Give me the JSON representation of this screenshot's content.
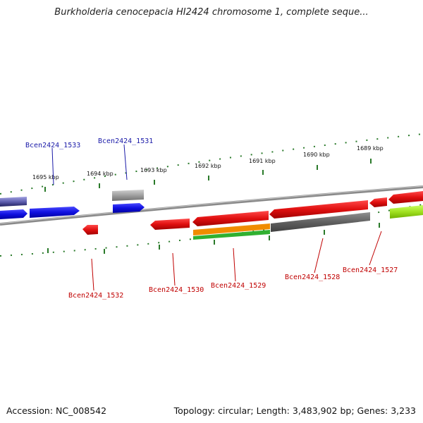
{
  "title": "Burkholderia cenocepacia HI2424 chromosome 1, complete seque...",
  "footer": {
    "accession": "Accession: NC_008542",
    "summary": "Topology: circular; Length: 3,483,902 bp; Genes: 3,233"
  },
  "kbp_labels": [
    "1695 kbp",
    "1694 kbp",
    "1693 kbp",
    "1692 kbp",
    "1691 kbp",
    "1690 kbp",
    "1689 kbp"
  ],
  "gene_labels_forward": [
    "Bcen2424_1533",
    "Bcen2424_1531"
  ],
  "gene_labels_reverse": [
    "Bcen2424_1532",
    "Bcen2424_1530",
    "Bcen2424_1529",
    "Bcen2424_1528",
    "Bcen2424_1527"
  ],
  "colors": {
    "forward_label": "#1a1aa8",
    "reverse_label": "#c00000",
    "forward_gene": "#1010e0",
    "reverse_gene": "#e01010",
    "pseudo_gene": "#a0a0a0",
    "dark_gene": "#606060",
    "orange_feature": "#f08c00",
    "green_feature": "#30b030",
    "lime_gene": "#a0e020",
    "tick": "#2a7a2a",
    "backbone": "#808080"
  }
}
